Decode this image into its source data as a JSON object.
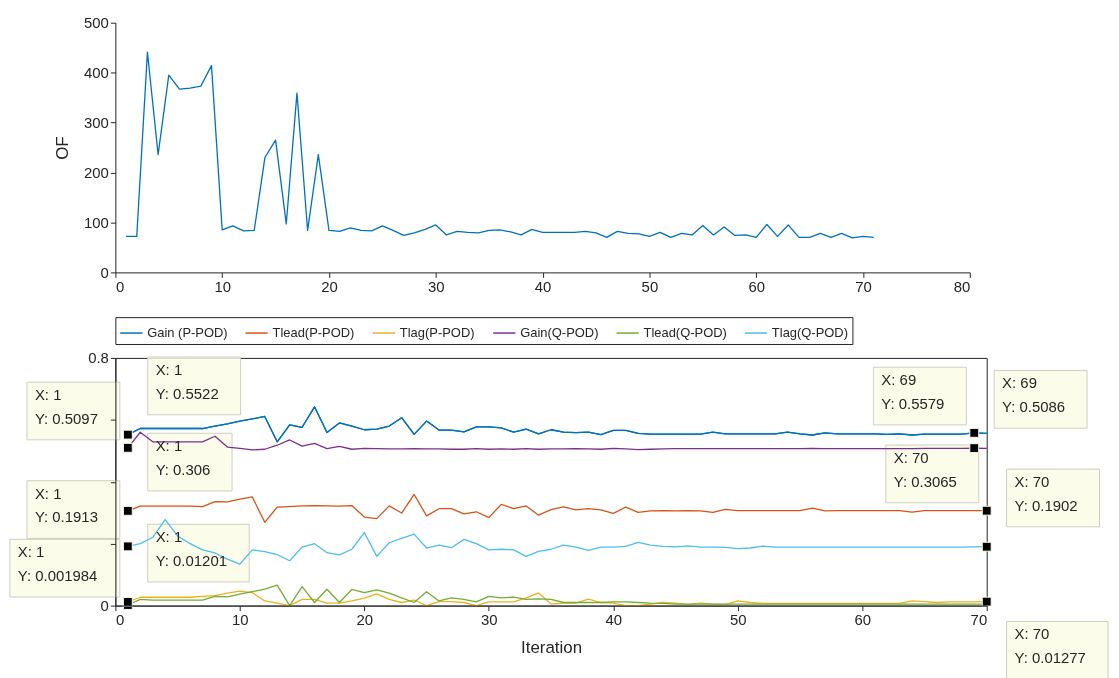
{
  "chart_data": [
    {
      "type": "line",
      "ylabel": "OF",
      "x": [
        1,
        2,
        3,
        4,
        5,
        6,
        7,
        8,
        9,
        10,
        11,
        12,
        13,
        14,
        15,
        16,
        17,
        18,
        19,
        20,
        21,
        22,
        23,
        24,
        25,
        26,
        27,
        28,
        29,
        30,
        31,
        32,
        33,
        34,
        35,
        36,
        37,
        38,
        39,
        40,
        41,
        42,
        43,
        44,
        45,
        46,
        47,
        48,
        49,
        50,
        51,
        52,
        53,
        54,
        55,
        56,
        57,
        58,
        59,
        60,
        61,
        62,
        63,
        64,
        65,
        66,
        67,
        68,
        69,
        70,
        71
      ],
      "values": [
        72,
        72,
        441,
        236,
        395,
        367,
        369,
        373,
        414,
        85,
        93,
        83,
        84,
        230,
        265,
        97,
        359,
        84,
        236,
        84,
        82,
        89,
        84,
        83,
        93,
        84,
        74,
        79,
        86,
        95,
        75,
        82,
        80,
        79,
        84,
        85,
        81,
        75,
        86,
        80,
        80,
        80,
        80,
        82,
        79,
        70,
        82,
        78,
        77,
        72,
        80,
        70,
        78,
        75,
        94,
        75,
        91,
        74,
        75,
        70,
        96,
        72,
        95,
        70,
        70,
        78,
        70,
        78,
        69,
        72,
        70
      ],
      "color": "#0072bd",
      "xlim": [
        0,
        80
      ],
      "xticks": [
        0,
        10,
        20,
        30,
        40,
        50,
        60,
        70,
        80
      ],
      "ylim": [
        0,
        500
      ],
      "yticks": [
        0,
        100,
        200,
        300,
        400,
        500
      ],
      "grid": false,
      "marker": "none",
      "line_style": "solid"
    },
    {
      "type": "line",
      "xlabel": "Iteration",
      "x": [
        1,
        2,
        3,
        4,
        5,
        6,
        7,
        8,
        9,
        10,
        11,
        12,
        13,
        14,
        15,
        16,
        17,
        18,
        19,
        20,
        21,
        22,
        23,
        24,
        25,
        26,
        27,
        28,
        29,
        30,
        31,
        32,
        33,
        34,
        35,
        36,
        37,
        38,
        39,
        40,
        41,
        42,
        43,
        44,
        45,
        46,
        47,
        48,
        49,
        50,
        51,
        52,
        53,
        54,
        55,
        56,
        57,
        58,
        59,
        60,
        61,
        62,
        63,
        64,
        65,
        66,
        67,
        68,
        69,
        70
      ],
      "series": [
        {
          "name": "Gain (P-POD)",
          "color": "#0072bd",
          "values": [
            0.5522,
            0.572,
            0.572,
            0.572,
            0.572,
            0.572,
            0.572,
            0.58,
            0.587,
            0.596,
            0.603,
            0.611,
            0.529,
            0.584,
            0.576,
            0.642,
            0.559,
            0.59,
            0.58,
            0.568,
            0.57,
            0.58,
            0.607,
            0.553,
            0.596,
            0.567,
            0.567,
            0.561,
            0.577,
            0.577,
            0.574,
            0.56,
            0.57,
            0.555,
            0.568,
            0.56,
            0.559,
            0.56,
            0.552,
            0.566,
            0.566,
            0.556,
            0.554,
            0.554,
            0.554,
            0.554,
            0.554,
            0.56,
            0.555,
            0.555,
            0.555,
            0.555,
            0.555,
            0.56,
            0.555,
            0.551,
            0.558,
            0.555,
            0.555,
            0.555,
            0.555,
            0.553,
            0.555,
            0.551,
            0.554,
            0.554,
            0.554,
            0.554,
            0.5579,
            0.556
          ]
        },
        {
          "name": "Tlead(P-POD)",
          "color": "#d95319",
          "values": [
            0.306,
            0.321,
            0.321,
            0.321,
            0.321,
            0.321,
            0.32,
            0.336,
            0.335,
            0.344,
            0.351,
            0.269,
            0.318,
            0.32,
            0.322,
            0.323,
            0.322,
            0.321,
            0.323,
            0.286,
            0.281,
            0.322,
            0.299,
            0.359,
            0.29,
            0.313,
            0.313,
            0.296,
            0.303,
            0.284,
            0.327,
            0.313,
            0.322,
            0.292,
            0.31,
            0.319,
            0.309,
            0.313,
            0.309,
            0.298,
            0.318,
            0.301,
            0.306,
            0.307,
            0.306,
            0.307,
            0.306,
            0.301,
            0.311,
            0.307,
            0.307,
            0.307,
            0.307,
            0.307,
            0.307,
            0.315,
            0.306,
            0.307,
            0.307,
            0.307,
            0.307,
            0.307,
            0.307,
            0.302,
            0.307,
            0.307,
            0.307,
            0.307,
            0.307,
            0.3065
          ]
        },
        {
          "name": "Tlag(P-POD)",
          "color": "#edb120",
          "values": [
            0.01201,
            0.027,
            0.027,
            0.027,
            0.027,
            0.027,
            0.03,
            0.032,
            0.04,
            0.047,
            0.042,
            0.015,
            0.008,
            0,
            0.02,
            0.02,
            0.008,
            0.008,
            0.015,
            0.024,
            0.038,
            0.02,
            0.01,
            0.018,
            0,
            0.013,
            0.013,
            0.01,
            0,
            0.012,
            0.012,
            0.012,
            0.025,
            0.041,
            0.005,
            0.008,
            0.008,
            0.021,
            0.01,
            0.008,
            0,
            0,
            0.005,
            0.01,
            0.008,
            0.003,
            0.008,
            0.005,
            0.003,
            0.015,
            0.01,
            0.007,
            0.007,
            0.007,
            0.007,
            0.007,
            0.007,
            0.007,
            0.007,
            0.007,
            0.007,
            0.007,
            0.007,
            0.015,
            0.013,
            0.01,
            0.012,
            0.012,
            0.012,
            0.01277
          ]
        },
        {
          "name": "Gain(Q-POD)",
          "color": "#7e2f8e",
          "values": [
            0.5097,
            0.56,
            0.529,
            0.529,
            0.529,
            0.529,
            0.529,
            0.547,
            0.512,
            0.508,
            0.503,
            0.505,
            0.518,
            0.535,
            0.515,
            0.524,
            0.507,
            0.514,
            0.505,
            0.508,
            0.507,
            0.506,
            0.506,
            0.507,
            0.506,
            0.506,
            0.505,
            0.505,
            0.507,
            0.505,
            0.506,
            0.505,
            0.507,
            0.505,
            0.506,
            0.506,
            0.507,
            0.506,
            0.505,
            0.508,
            0.506,
            0.504,
            0.505,
            0.506,
            0.507,
            0.507,
            0.507,
            0.507,
            0.507,
            0.507,
            0.507,
            0.507,
            0.507,
            0.507,
            0.507,
            0.508,
            0.507,
            0.507,
            0.507,
            0.507,
            0.507,
            0.507,
            0.507,
            0.507,
            0.508,
            0.508,
            0.508,
            0.508,
            0.5086,
            0.508
          ]
        },
        {
          "name": "Tlead(Q-POD)",
          "color": "#77ac30",
          "values": [
            0.001984,
            0.02,
            0.018,
            0.018,
            0.018,
            0.018,
            0.018,
            0.03,
            0.028,
            0.037,
            0.045,
            0.053,
            0.066,
            0,
            0.061,
            0.01,
            0.053,
            0.01,
            0.052,
            0.042,
            0.051,
            0.04,
            0.025,
            0.01,
            0.045,
            0.015,
            0.025,
            0.02,
            0.012,
            0.03,
            0.025,
            0.027,
            0.02,
            0.022,
            0.02,
            0.01,
            0.01,
            0.01,
            0.01,
            0.012,
            0.012,
            0.01,
            0.008,
            0.007,
            0.005,
            0.005,
            0.005,
            0.005,
            0.005,
            0.005,
            0.005,
            0.005,
            0.005,
            0.005,
            0.005,
            0.005,
            0.005,
            0.005,
            0.005,
            0.005,
            0.005,
            0.005,
            0.005,
            0.005,
            0.005,
            0.005,
            0.005,
            0.005,
            0.005,
            0.005
          ]
        },
        {
          "name": "Tlag(Q-POD)",
          "color": "#4dbeee",
          "values": [
            0.1913,
            0.2,
            0.22,
            0.278,
            0.225,
            0.2,
            0.18,
            0.17,
            0.15,
            0.134,
            0.18,
            0.174,
            0.165,
            0.145,
            0.189,
            0.2,
            0.171,
            0.164,
            0.182,
            0.236,
            0.159,
            0.203,
            0.217,
            0.231,
            0.186,
            0.195,
            0.187,
            0.214,
            0.2,
            0.18,
            0.182,
            0.18,
            0.159,
            0.175,
            0.182,
            0.195,
            0.189,
            0.178,
            0.189,
            0.189,
            0.191,
            0.204,
            0.195,
            0.191,
            0.19,
            0.193,
            0.189,
            0.189,
            0.188,
            0.184,
            0.186,
            0.192,
            0.189,
            0.189,
            0.189,
            0.189,
            0.189,
            0.189,
            0.189,
            0.189,
            0.189,
            0.189,
            0.189,
            0.189,
            0.189,
            0.189,
            0.189,
            0.189,
            0.19,
            0.1902
          ]
        }
      ],
      "xlim": [
        0,
        70
      ],
      "xticks": [
        0,
        10,
        20,
        30,
        40,
        50,
        60,
        70
      ],
      "ylim": [
        0,
        0.8
      ],
      "yticks": [
        0,
        {
          "value": 0.2,
          "label": null
        },
        {
          "value": 0.4,
          "label": null
        },
        {
          "value": 0.6,
          "label": null
        },
        0.8
      ],
      "grid": false,
      "marker": "none",
      "line_style": "solid",
      "legend": "top",
      "annotations": [
        {
          "text": "X: 1\nY: 0.5097",
          "x": 1,
          "y": 0.5097
        },
        {
          "text": "X: 1\nY: 0.5522",
          "x": 1,
          "y": 0.5522
        },
        {
          "text": "X: 1\nY: 0.306",
          "x": 1,
          "y": 0.306
        },
        {
          "text": "X: 1\nY: 0.1913",
          "x": 1,
          "y": 0.1913
        },
        {
          "text": "X: 1\nY: 0.001984",
          "x": 1,
          "y": 0.001984
        },
        {
          "text": "X: 1\nY: 0.01201",
          "x": 1,
          "y": 0.01201
        },
        {
          "text": "X: 69\nY: 0.5579",
          "x": 69,
          "y": 0.5579
        },
        {
          "text": "X: 69\nY: 0.5086",
          "x": 69,
          "y": 0.5086
        },
        {
          "text": "X: 70\nY: 0.3065",
          "x": 70,
          "y": 0.3065
        },
        {
          "text": "X: 70\nY: 0.1902",
          "x": 70,
          "y": 0.1902
        },
        {
          "text": "X: 70\nY: 0.01277",
          "x": 70,
          "y": 0.01277
        }
      ]
    }
  ]
}
